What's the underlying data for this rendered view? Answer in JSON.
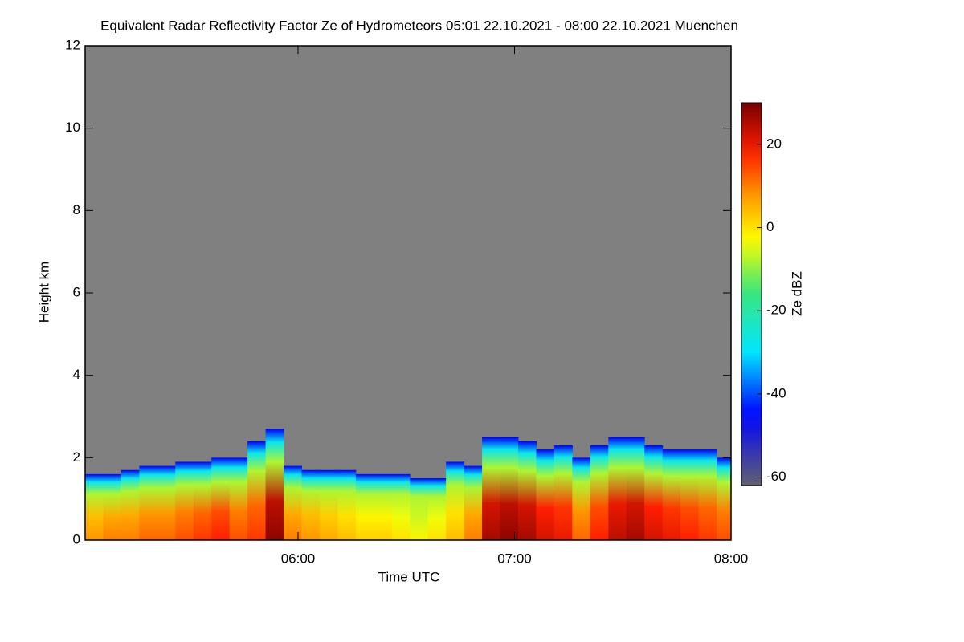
{
  "chart_data": {
    "type": "heatmap",
    "title": "Equivalent Radar Reflectivity Factor Ze of Hydrometeors   05:01 22.10.2021 - 08:00 22.10.2021 Muenchen",
    "x_label": "Time UTC",
    "y_label": "Height km",
    "colorbar_label": "Ze dBZ",
    "xlim": [
      "05:01",
      "08:00"
    ],
    "xticks": [
      "06:00",
      "07:00",
      "08:00"
    ],
    "ylim": [
      0,
      12
    ],
    "yticks": [
      0,
      2,
      4,
      6,
      8,
      10,
      12
    ],
    "zlim": [
      -62,
      30
    ],
    "zticks": [
      -60,
      -40,
      -20,
      0,
      20
    ],
    "x": [
      "05:01",
      "05:06",
      "05:11",
      "05:16",
      "05:21",
      "05:26",
      "05:31",
      "05:36",
      "05:41",
      "05:46",
      "05:51",
      "05:56",
      "06:01",
      "06:06",
      "06:11",
      "06:16",
      "06:21",
      "06:26",
      "06:31",
      "06:36",
      "06:41",
      "06:46",
      "06:51",
      "06:56",
      "07:01",
      "07:06",
      "07:11",
      "07:16",
      "07:21",
      "07:26",
      "07:31",
      "07:36",
      "07:41",
      "07:46",
      "07:51",
      "07:56"
    ],
    "values": [
      1.6,
      1.6,
      1.7,
      1.8,
      1.8,
      1.9,
      1.9,
      2.0,
      2.0,
      2.4,
      2.7,
      1.8,
      1.7,
      1.7,
      1.7,
      1.6,
      1.6,
      1.6,
      1.5,
      1.5,
      1.9,
      1.8,
      2.5,
      2.5,
      2.4,
      2.2,
      2.3,
      2.0,
      2.3,
      2.5,
      2.5,
      2.3,
      2.2,
      2.2,
      2.2,
      2.0
    ],
    "z": [
      8,
      10,
      10,
      12,
      12,
      14,
      16,
      18,
      14,
      16,
      28,
      10,
      8,
      6,
      4,
      2,
      2,
      0,
      -2,
      0,
      4,
      10,
      26,
      28,
      26,
      22,
      20,
      12,
      18,
      24,
      26,
      22,
      20,
      18,
      16,
      14
    ],
    "background_color": "#808080"
  }
}
